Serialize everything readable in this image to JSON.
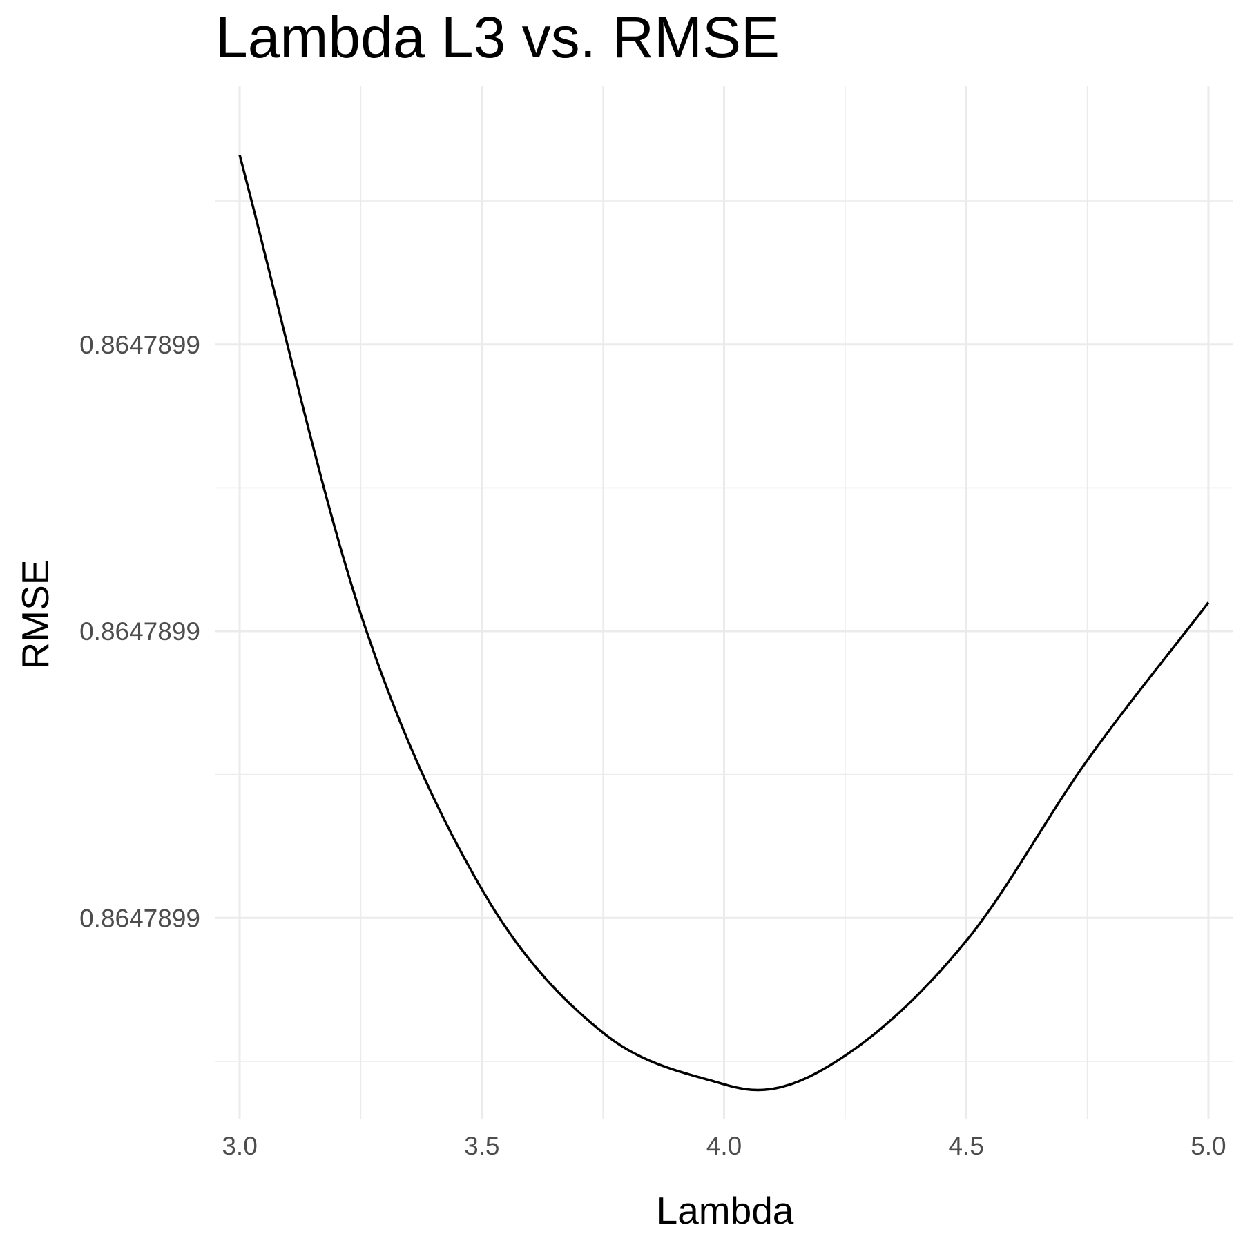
{
  "chart_data": {
    "type": "line",
    "title": "Lambda L3 vs. RMSE",
    "xlabel": "Lambda",
    "ylabel": "RMSE",
    "x_ticks": [
      3.0,
      3.5,
      4.0,
      4.5,
      5.0
    ],
    "x_tick_labels": [
      "3.0",
      "3.5",
      "4.0",
      "4.5",
      "5.0"
    ],
    "y_ticks": [
      3,
      2,
      1
    ],
    "y_tick_labels": [
      "0.8647899",
      "0.8647899",
      "0.8647899"
    ],
    "xlim": [
      2.95,
      5.05
    ],
    "ylim": [
      0.3,
      3.9
    ],
    "grid": true,
    "legend": "none",
    "line_color": "#000000",
    "x": [
      3.0,
      3.25,
      3.5,
      3.75,
      4.0,
      4.07,
      4.25,
      4.5,
      4.75,
      5.0
    ],
    "y": [
      3.66,
      2.06,
      1.1,
      0.6,
      0.42,
      0.4,
      0.52,
      0.92,
      1.55,
      2.1
    ]
  }
}
